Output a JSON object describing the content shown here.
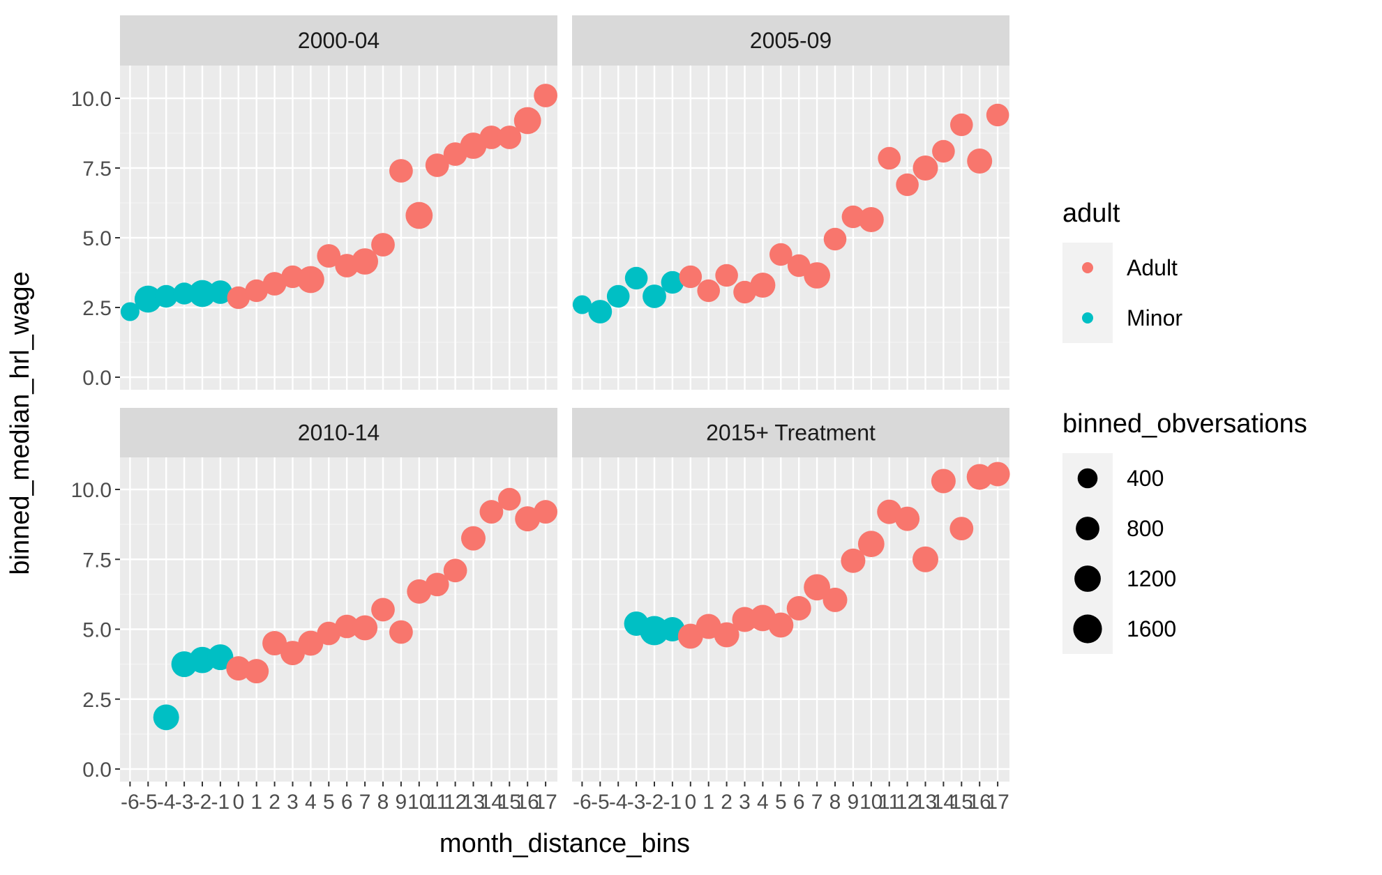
{
  "chart_data": {
    "type": "scatter",
    "x_label": "month_distance_bins",
    "y_label": "binned_median_hrl_wage",
    "x_categories": [
      "-6",
      "-5",
      "-4",
      "-3",
      "-2",
      "-1",
      "0",
      "1",
      "2",
      "3",
      "4",
      "5",
      "6",
      "7",
      "8",
      "9",
      "10",
      "11",
      "12",
      "13",
      "14",
      "15",
      "16",
      "17"
    ],
    "y_ticks": [
      "0.0",
      "2.5",
      "5.0",
      "7.5",
      "10.0"
    ],
    "y_range": [
      0,
      10
    ],
    "colors": {
      "Adult": "#F8766D",
      "Minor": "#00BFC4"
    },
    "legend_color": {
      "title": "adult",
      "entries": [
        "Adult",
        "Minor"
      ]
    },
    "legend_size": {
      "title": "binned_obversations",
      "entries": [
        "400",
        "800",
        "1200",
        "1600"
      ],
      "values": [
        400,
        800,
        1200,
        1600
      ]
    },
    "panels": [
      {
        "title": "2000-04",
        "points": [
          {
            "x": -6,
            "y": 2.35,
            "group": "Minor",
            "n": 300
          },
          {
            "x": -5,
            "y": 2.8,
            "group": "Minor",
            "n": 1300
          },
          {
            "x": -4,
            "y": 2.9,
            "group": "Minor",
            "n": 700
          },
          {
            "x": -3,
            "y": 3.0,
            "group": "Minor",
            "n": 600
          },
          {
            "x": -2,
            "y": 3.0,
            "group": "Minor",
            "n": 1300
          },
          {
            "x": -1,
            "y": 3.05,
            "group": "Minor",
            "n": 800
          },
          {
            "x": 0,
            "y": 2.85,
            "group": "Adult",
            "n": 700
          },
          {
            "x": 1,
            "y": 3.1,
            "group": "Adult",
            "n": 700
          },
          {
            "x": 2,
            "y": 3.35,
            "group": "Adult",
            "n": 800
          },
          {
            "x": 3,
            "y": 3.6,
            "group": "Adult",
            "n": 700
          },
          {
            "x": 4,
            "y": 3.5,
            "group": "Adult",
            "n": 1300
          },
          {
            "x": 5,
            "y": 4.35,
            "group": "Adult",
            "n": 800
          },
          {
            "x": 6,
            "y": 4.0,
            "group": "Adult",
            "n": 800
          },
          {
            "x": 7,
            "y": 4.15,
            "group": "Adult",
            "n": 1200
          },
          {
            "x": 8,
            "y": 4.75,
            "group": "Adult",
            "n": 800
          },
          {
            "x": 9,
            "y": 7.4,
            "group": "Adult",
            "n": 800
          },
          {
            "x": 10,
            "y": 5.8,
            "group": "Adult",
            "n": 1300
          },
          {
            "x": 11,
            "y": 7.6,
            "group": "Adult",
            "n": 800
          },
          {
            "x": 12,
            "y": 8.0,
            "group": "Adult",
            "n": 800
          },
          {
            "x": 13,
            "y": 8.3,
            "group": "Adult",
            "n": 1200
          },
          {
            "x": 14,
            "y": 8.6,
            "group": "Adult",
            "n": 800
          },
          {
            "x": 15,
            "y": 8.6,
            "group": "Adult",
            "n": 800
          },
          {
            "x": 16,
            "y": 9.2,
            "group": "Adult",
            "n": 1300
          },
          {
            "x": 17,
            "y": 10.1,
            "group": "Adult",
            "n": 800
          }
        ]
      },
      {
        "title": "2005-09",
        "points": [
          {
            "x": -6,
            "y": 2.6,
            "group": "Minor",
            "n": 300
          },
          {
            "x": -5,
            "y": 2.35,
            "group": "Minor",
            "n": 800
          },
          {
            "x": -4,
            "y": 2.9,
            "group": "Minor",
            "n": 700
          },
          {
            "x": -3,
            "y": 3.55,
            "group": "Minor",
            "n": 700
          },
          {
            "x": -2,
            "y": 2.9,
            "group": "Minor",
            "n": 800
          },
          {
            "x": -1,
            "y": 3.4,
            "group": "Minor",
            "n": 700
          },
          {
            "x": 0,
            "y": 3.6,
            "group": "Adult",
            "n": 700
          },
          {
            "x": 1,
            "y": 3.1,
            "group": "Adult",
            "n": 700
          },
          {
            "x": 2,
            "y": 3.65,
            "group": "Adult",
            "n": 700
          },
          {
            "x": 3,
            "y": 3.05,
            "group": "Adult",
            "n": 700
          },
          {
            "x": 4,
            "y": 3.3,
            "group": "Adult",
            "n": 1000
          },
          {
            "x": 5,
            "y": 4.4,
            "group": "Adult",
            "n": 700
          },
          {
            "x": 6,
            "y": 4.0,
            "group": "Adult",
            "n": 700
          },
          {
            "x": 7,
            "y": 3.65,
            "group": "Adult",
            "n": 1200
          },
          {
            "x": 8,
            "y": 4.95,
            "group": "Adult",
            "n": 700
          },
          {
            "x": 9,
            "y": 5.75,
            "group": "Adult",
            "n": 700
          },
          {
            "x": 10,
            "y": 5.65,
            "group": "Adult",
            "n": 1000
          },
          {
            "x": 11,
            "y": 7.85,
            "group": "Adult",
            "n": 700
          },
          {
            "x": 12,
            "y": 6.9,
            "group": "Adult",
            "n": 700
          },
          {
            "x": 13,
            "y": 7.5,
            "group": "Adult",
            "n": 1000
          },
          {
            "x": 14,
            "y": 8.1,
            "group": "Adult",
            "n": 700
          },
          {
            "x": 15,
            "y": 9.05,
            "group": "Adult",
            "n": 700
          },
          {
            "x": 16,
            "y": 7.75,
            "group": "Adult",
            "n": 1000
          },
          {
            "x": 17,
            "y": 9.4,
            "group": "Adult",
            "n": 700
          }
        ]
      },
      {
        "title": "2010-14",
        "points": [
          {
            "x": -4,
            "y": 1.85,
            "group": "Minor",
            "n": 1100
          },
          {
            "x": -3,
            "y": 3.75,
            "group": "Minor",
            "n": 1100
          },
          {
            "x": -2,
            "y": 3.9,
            "group": "Minor",
            "n": 1200
          },
          {
            "x": -1,
            "y": 4.0,
            "group": "Minor",
            "n": 1100
          },
          {
            "x": 0,
            "y": 3.6,
            "group": "Adult",
            "n": 900
          },
          {
            "x": 1,
            "y": 3.5,
            "group": "Adult",
            "n": 900
          },
          {
            "x": 2,
            "y": 4.5,
            "group": "Adult",
            "n": 900
          },
          {
            "x": 3,
            "y": 4.15,
            "group": "Adult",
            "n": 900
          },
          {
            "x": 4,
            "y": 4.5,
            "group": "Adult",
            "n": 1000
          },
          {
            "x": 5,
            "y": 4.85,
            "group": "Adult",
            "n": 800
          },
          {
            "x": 6,
            "y": 5.1,
            "group": "Adult",
            "n": 800
          },
          {
            "x": 7,
            "y": 5.05,
            "group": "Adult",
            "n": 1000
          },
          {
            "x": 8,
            "y": 5.7,
            "group": "Adult",
            "n": 800
          },
          {
            "x": 9,
            "y": 4.9,
            "group": "Adult",
            "n": 800
          },
          {
            "x": 10,
            "y": 6.35,
            "group": "Adult",
            "n": 900
          },
          {
            "x": 11,
            "y": 6.6,
            "group": "Adult",
            "n": 800
          },
          {
            "x": 12,
            "y": 7.1,
            "group": "Adult",
            "n": 800
          },
          {
            "x": 13,
            "y": 8.25,
            "group": "Adult",
            "n": 900
          },
          {
            "x": 14,
            "y": 9.2,
            "group": "Adult",
            "n": 800
          },
          {
            "x": 15,
            "y": 9.65,
            "group": "Adult",
            "n": 700
          },
          {
            "x": 16,
            "y": 8.95,
            "group": "Adult",
            "n": 1000
          },
          {
            "x": 17,
            "y": 9.2,
            "group": "Adult",
            "n": 800
          }
        ]
      },
      {
        "title": "2015+ Treatment",
        "points": [
          {
            "x": -3,
            "y": 5.2,
            "group": "Minor",
            "n": 900
          },
          {
            "x": -2,
            "y": 4.95,
            "group": "Minor",
            "n": 1700
          },
          {
            "x": -1,
            "y": 5.0,
            "group": "Minor",
            "n": 900
          },
          {
            "x": 0,
            "y": 4.75,
            "group": "Adult",
            "n": 1000
          },
          {
            "x": 1,
            "y": 5.1,
            "group": "Adult",
            "n": 1000
          },
          {
            "x": 2,
            "y": 4.8,
            "group": "Adult",
            "n": 1000
          },
          {
            "x": 3,
            "y": 5.35,
            "group": "Adult",
            "n": 1000
          },
          {
            "x": 4,
            "y": 5.4,
            "group": "Adult",
            "n": 1200
          },
          {
            "x": 5,
            "y": 5.15,
            "group": "Adult",
            "n": 1000
          },
          {
            "x": 6,
            "y": 5.75,
            "group": "Adult",
            "n": 900
          },
          {
            "x": 7,
            "y": 6.5,
            "group": "Adult",
            "n": 1200
          },
          {
            "x": 8,
            "y": 6.05,
            "group": "Adult",
            "n": 900
          },
          {
            "x": 9,
            "y": 7.45,
            "group": "Adult",
            "n": 900
          },
          {
            "x": 10,
            "y": 8.05,
            "group": "Adult",
            "n": 1200
          },
          {
            "x": 11,
            "y": 9.2,
            "group": "Adult",
            "n": 900
          },
          {
            "x": 12,
            "y": 8.95,
            "group": "Adult",
            "n": 900
          },
          {
            "x": 13,
            "y": 7.5,
            "group": "Adult",
            "n": 1100
          },
          {
            "x": 14,
            "y": 10.3,
            "group": "Adult",
            "n": 900
          },
          {
            "x": 15,
            "y": 8.6,
            "group": "Adult",
            "n": 800
          },
          {
            "x": 16,
            "y": 10.45,
            "group": "Adult",
            "n": 1100
          },
          {
            "x": 17,
            "y": 10.55,
            "group": "Adult",
            "n": 900
          }
        ]
      }
    ]
  }
}
